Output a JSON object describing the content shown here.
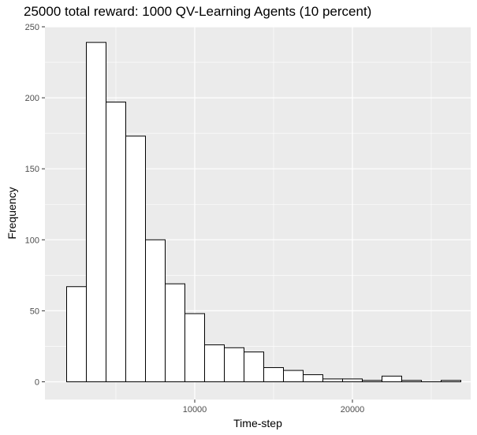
{
  "chart_data": {
    "type": "bar",
    "title": "25000 total reward: 1000 QV-Learning Agents (10 percent)",
    "xlabel": "Time-step",
    "ylabel": "Frequency",
    "x_ticks": [
      10000,
      20000
    ],
    "y_ticks": [
      0,
      50,
      100,
      150,
      200,
      250
    ],
    "xlim": [
      500,
      27500
    ],
    "ylim": [
      -12.5,
      250
    ],
    "bin_width": 1250,
    "bins": [
      {
        "start": 1875,
        "end": 3125,
        "value": 67
      },
      {
        "start": 3125,
        "end": 4375,
        "value": 239
      },
      {
        "start": 4375,
        "end": 5625,
        "value": 197
      },
      {
        "start": 5625,
        "end": 6875,
        "value": 173
      },
      {
        "start": 6875,
        "end": 8125,
        "value": 100
      },
      {
        "start": 8125,
        "end": 9375,
        "value": 69
      },
      {
        "start": 9375,
        "end": 10625,
        "value": 48
      },
      {
        "start": 10625,
        "end": 11875,
        "value": 26
      },
      {
        "start": 11875,
        "end": 13125,
        "value": 24
      },
      {
        "start": 13125,
        "end": 14375,
        "value": 21
      },
      {
        "start": 14375,
        "end": 15625,
        "value": 10
      },
      {
        "start": 15625,
        "end": 16875,
        "value": 8
      },
      {
        "start": 16875,
        "end": 18125,
        "value": 5
      },
      {
        "start": 18125,
        "end": 19375,
        "value": 2
      },
      {
        "start": 19375,
        "end": 20625,
        "value": 2
      },
      {
        "start": 20625,
        "end": 21875,
        "value": 1
      },
      {
        "start": 21875,
        "end": 23125,
        "value": 4
      },
      {
        "start": 23125,
        "end": 24375,
        "value": 1
      },
      {
        "start": 24375,
        "end": 25625,
        "value": 0
      },
      {
        "start": 25625,
        "end": 26875,
        "value": 1
      }
    ],
    "grid": true,
    "colors": {
      "panel": "#ebebeb",
      "grid": "#ffffff",
      "bar_fill": "#ffffff",
      "bar_stroke": "#000000"
    }
  }
}
